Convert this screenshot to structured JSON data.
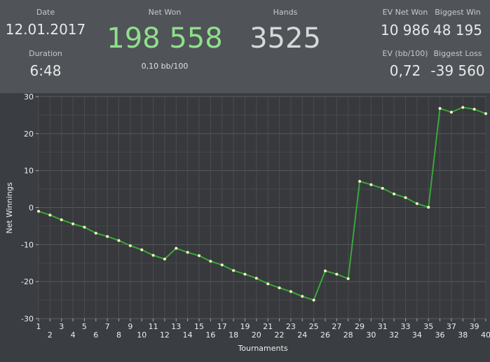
{
  "stats": {
    "date_label": "Date",
    "date_value": "12.01.2017",
    "duration_label": "Duration",
    "duration_value": "6:48",
    "net_won_label": "Net Won",
    "net_won_value": "198 558",
    "bb_value": "0,10 bb/100",
    "hands_label": "Hands",
    "hands_value": "3525",
    "ev_net_won_label": "EV Net Won",
    "ev_net_won_value": "10 986",
    "ev_bb_label": "EV (bb/100)",
    "ev_bb_value": "0,72",
    "biggest_win_label": "Biggest Win",
    "biggest_win_value": "48 195",
    "biggest_loss_label": "Biggest Loss",
    "biggest_loss_value": "-39 560"
  },
  "colors": {
    "net_won": "#8ee08a",
    "line": "#3aa63a",
    "point": "#f2f7c2"
  },
  "chart_data": {
    "type": "line",
    "xlabel": "Tournaments",
    "ylabel": "Net Winnings",
    "xlim": [
      1,
      40
    ],
    "ylim": [
      -30,
      30
    ],
    "yticks": [
      30,
      20,
      10,
      0,
      -10,
      -20,
      -30
    ],
    "x": [
      1,
      2,
      3,
      4,
      5,
      6,
      7,
      8,
      9,
      10,
      11,
      12,
      13,
      14,
      15,
      16,
      17,
      18,
      19,
      20,
      21,
      22,
      23,
      24,
      25,
      26,
      27,
      28,
      29,
      30,
      31,
      32,
      33,
      34,
      35,
      36,
      37,
      38,
      39,
      40
    ],
    "grid": true,
    "series": [
      {
        "values": [
          -1.0,
          -2.0,
          -3.3,
          -4.4,
          -5.3,
          -6.9,
          -7.8,
          -8.9,
          -10.3,
          -11.4,
          -12.9,
          -13.9,
          -11.0,
          -12.1,
          -13.0,
          -14.5,
          -15.5,
          -17.0,
          -18.0,
          -19.1,
          -20.6,
          -21.7,
          -22.7,
          -24.0,
          -25.0,
          -17.1,
          -18.0,
          -19.2,
          7.1,
          6.2,
          5.2,
          3.7,
          2.7,
          1.1,
          0.1,
          26.8,
          25.8,
          27.1,
          26.6,
          25.4
        ]
      }
    ]
  }
}
